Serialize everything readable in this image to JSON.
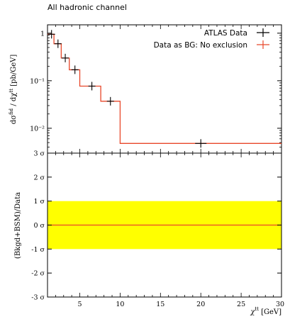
{
  "title": "All hadronic channel",
  "colors": {
    "data": "#000000",
    "mc": "#e8472a",
    "band": "#ffff00",
    "ratio_line": "#e8472a"
  },
  "chart_data": [
    {
      "type": "line",
      "yscale": "log",
      "xlim": [
        1,
        30
      ],
      "ylim": [
        0.003,
        1.5
      ],
      "ylabel": "dσ^fid / dχ^tt [pb/GeV]",
      "legend_position": "top-right",
      "yticks": [
        {
          "value": 1,
          "label": "1"
        },
        {
          "value": 0.1,
          "label": "10⁻¹"
        },
        {
          "value": 0.01,
          "label": "10⁻²"
        }
      ],
      "series": [
        {
          "name": "ATLAS Data",
          "style": "points",
          "points": [
            {
              "x": 1.5,
              "y": 0.95
            },
            {
              "x": 2.3,
              "y": 0.6
            },
            {
              "x": 3.2,
              "y": 0.3
            },
            {
              "x": 4.4,
              "y": 0.17
            },
            {
              "x": 6.5,
              "y": 0.077
            },
            {
              "x": 8.8,
              "y": 0.037
            },
            {
              "x": 20,
              "y": 0.0048
            }
          ]
        },
        {
          "name": "Data as BG: No exclusion",
          "style": "histogram",
          "edges": [
            1,
            1.8,
            2.7,
            3.7,
            5,
            7.6,
            10,
            30
          ],
          "values": [
            0.95,
            0.6,
            0.3,
            0.17,
            0.077,
            0.037,
            0.0048
          ]
        }
      ]
    },
    {
      "type": "area",
      "xlim": [
        1,
        30
      ],
      "ylim": [
        -3,
        3
      ],
      "xlabel": "χ^tt [GeV]",
      "ylabel": "(Bkgd+BSM)/Data",
      "xticks": [
        5,
        10,
        15,
        20,
        25,
        30
      ],
      "yticks": [
        {
          "value": 3,
          "label": "3 σ"
        },
        {
          "value": 2,
          "label": "2 σ"
        },
        {
          "value": 1,
          "label": "1 σ"
        },
        {
          "value": 0,
          "label": "0 σ"
        },
        {
          "value": -1,
          "label": "-1 σ"
        },
        {
          "value": -2,
          "label": "-2 σ"
        },
        {
          "value": -3,
          "label": "-3 σ"
        }
      ],
      "band": [
        -1,
        1
      ],
      "line": 0
    }
  ]
}
